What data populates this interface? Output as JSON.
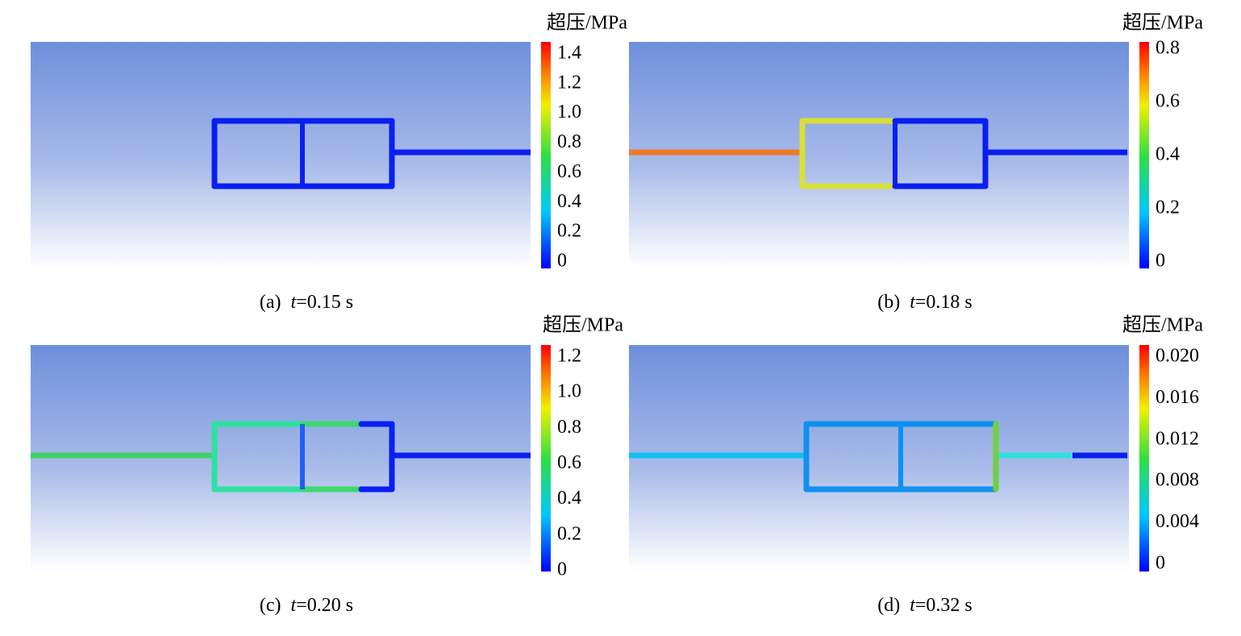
{
  "panels": [
    {
      "unit": "超压/MPa",
      "ticks": [
        "1.4",
        "1.2",
        "1.0",
        "0.8",
        "0.6",
        "0.4",
        "0.2",
        "0"
      ],
      "caption": {
        "label": "(a)",
        "variable": "t",
        "value": "=0.15 s"
      }
    },
    {
      "unit": "超压/MPa",
      "ticks": [
        "0.8",
        "0.6",
        "0.4",
        "0.2",
        "0"
      ],
      "caption": {
        "label": "(b)",
        "variable": "t",
        "value": "=0.18 s"
      }
    },
    {
      "unit": "超压/MPa",
      "ticks": [
        "1.2",
        "1.0",
        "0.8",
        "0.6",
        "0.4",
        "0.2",
        "0"
      ],
      "caption": {
        "label": "(c)",
        "variable": "t",
        "value": "=0.20 s"
      }
    },
    {
      "unit": "超压/MPa",
      "ticks": [
        "0.020",
        "0.016",
        "0.012",
        "0.008",
        "0.004",
        "0"
      ],
      "caption": {
        "label": "(d)",
        "variable": "t",
        "value": "=0.32 s"
      }
    }
  ]
}
